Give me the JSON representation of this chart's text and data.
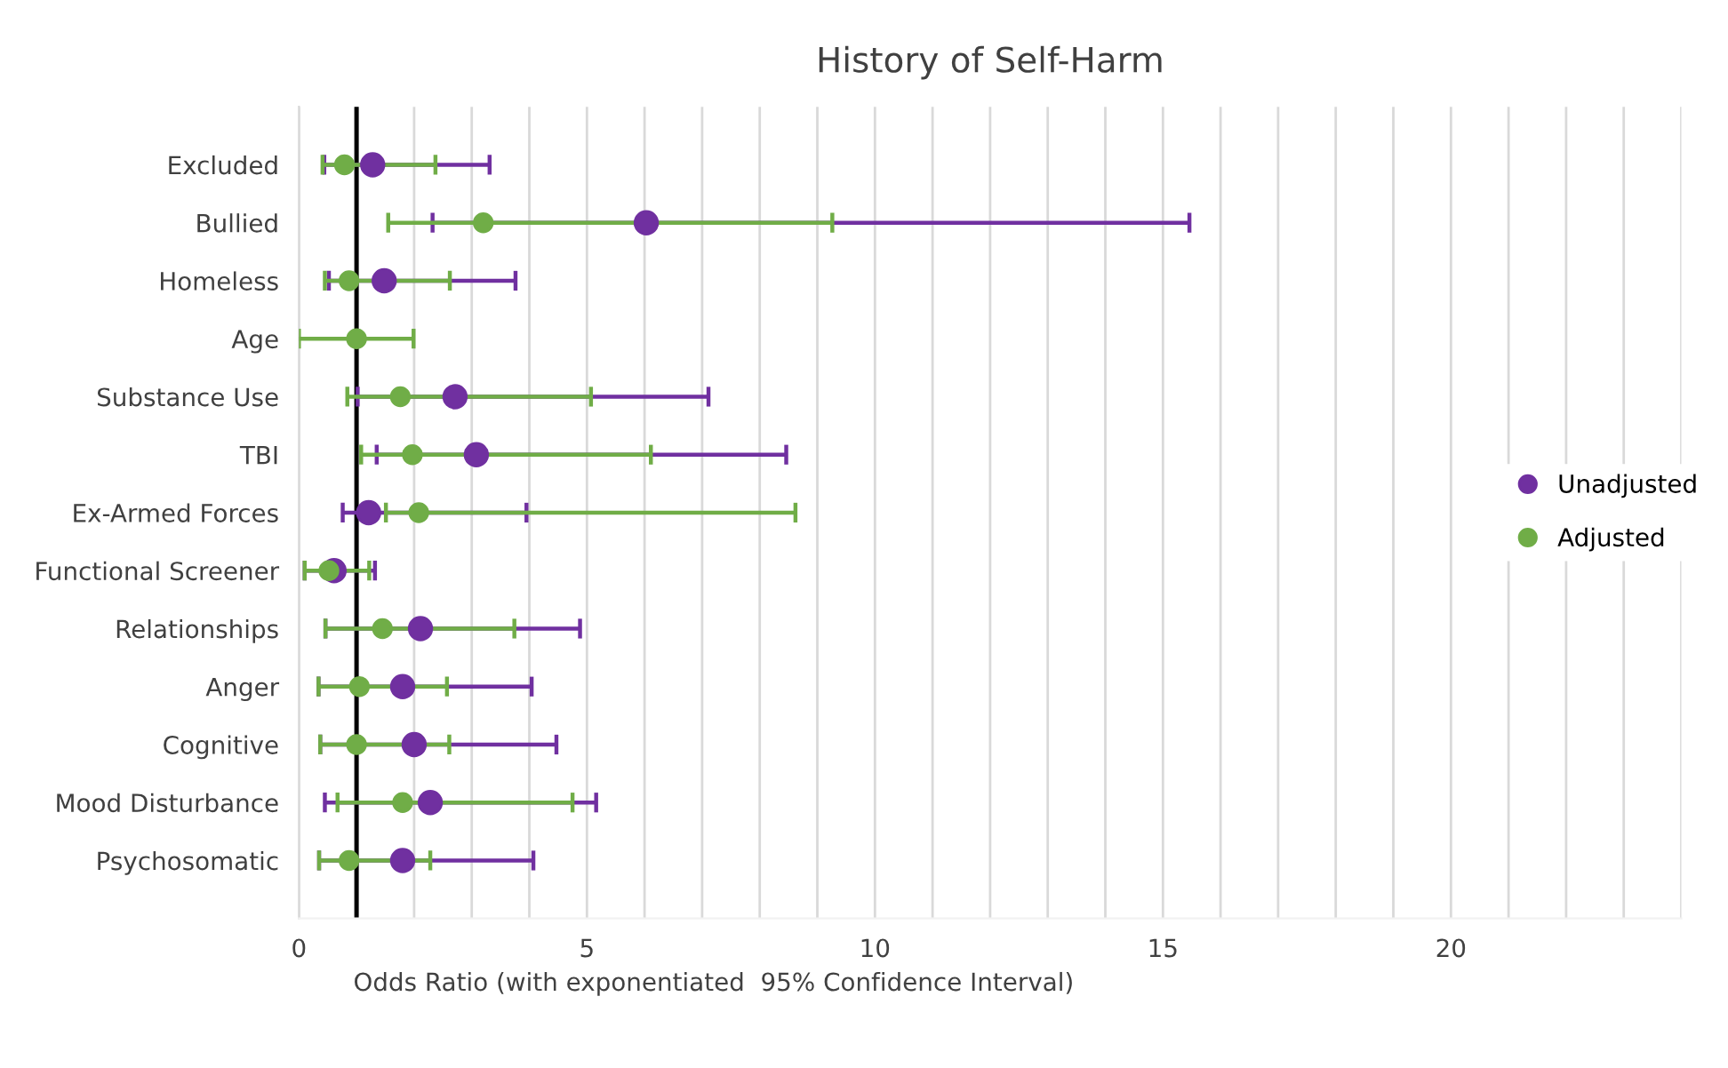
{
  "chart_data": {
    "type": "scatter",
    "orientation": "horizontal",
    "title": "History of Self-Harm",
    "xlabel": "Odds Ratio (with exponentiated  95% Confidence Interval)",
    "categories": [
      "Excluded",
      "Bullied",
      "Homeless",
      "Age",
      "Substance Use",
      "TBI",
      "Ex-Armed Forces",
      "Functional Screener",
      "Relationships",
      "Anger",
      "Cognitive",
      "Mood Disturbance",
      "Psychosomatic"
    ],
    "series": [
      {
        "name": "Unadjusted",
        "color": "#7030a0",
        "values": [
          1.28,
          6.03,
          1.48,
          null,
          2.71,
          3.08,
          1.21,
          0.61,
          2.11,
          1.8,
          2.0,
          2.28,
          1.8
        ],
        "errors": [
          [
            0.44,
            3.31
          ],
          [
            2.32,
            15.46
          ],
          [
            0.52,
            3.76
          ],
          null,
          [
            1.02,
            7.11
          ],
          [
            1.35,
            8.46
          ],
          [
            0.76,
            3.95
          ],
          [
            0.1,
            1.32
          ],
          [
            0.46,
            4.88
          ],
          [
            0.34,
            4.04
          ],
          [
            0.37,
            4.47
          ],
          [
            0.45,
            5.16
          ],
          [
            0.35,
            4.07
          ]
        ]
      },
      {
        "name": "Adjusted",
        "color": "#70ad47",
        "values": [
          0.79,
          3.2,
          0.87,
          1.0,
          1.76,
          1.97,
          2.08,
          0.52,
          1.45,
          1.05,
          1.0,
          1.8,
          0.87
        ],
        "errors": [
          [
            0.41,
            2.37
          ],
          [
            1.55,
            9.26
          ],
          [
            0.45,
            2.62
          ],
          [
            0.0,
            1.99
          ],
          [
            0.84,
            5.07
          ],
          [
            1.08,
            6.11
          ],
          [
            1.51,
            8.62
          ],
          [
            0.1,
            1.22
          ],
          [
            0.46,
            3.74
          ],
          [
            0.34,
            2.57
          ],
          [
            0.37,
            2.61
          ],
          [
            0.67,
            4.75
          ],
          [
            0.35,
            2.28
          ]
        ]
      }
    ],
    "xlim": [
      0,
      24
    ],
    "xticks": [
      0,
      {
        "value": 1,
        "label": null
      },
      {
        "value": 2,
        "label": null
      },
      {
        "value": 3,
        "label": null
      },
      {
        "value": 4,
        "label": null
      },
      5,
      {
        "value": 6,
        "label": null
      },
      {
        "value": 7,
        "label": null
      },
      {
        "value": 8,
        "label": null
      },
      {
        "value": 9,
        "label": null
      },
      10,
      {
        "value": 11,
        "label": null
      },
      {
        "value": 12,
        "label": null
      },
      {
        "value": 13,
        "label": null
      },
      {
        "value": 14,
        "label": null
      },
      15,
      {
        "value": 16,
        "label": null
      },
      {
        "value": 17,
        "label": null
      },
      {
        "value": 18,
        "label": null
      },
      {
        "value": 19,
        "label": null
      },
      20,
      {
        "value": 21,
        "label": null
      },
      {
        "value": 22,
        "label": null
      },
      {
        "value": 23,
        "label": null
      },
      {
        "value": 24,
        "label": null
      }
    ],
    "ref_lines": [
      {
        "axis": "x",
        "value": 1,
        "color": "#000000",
        "line_style": "solid"
      }
    ],
    "grid": "x",
    "legend": "right",
    "marker": "circle"
  }
}
